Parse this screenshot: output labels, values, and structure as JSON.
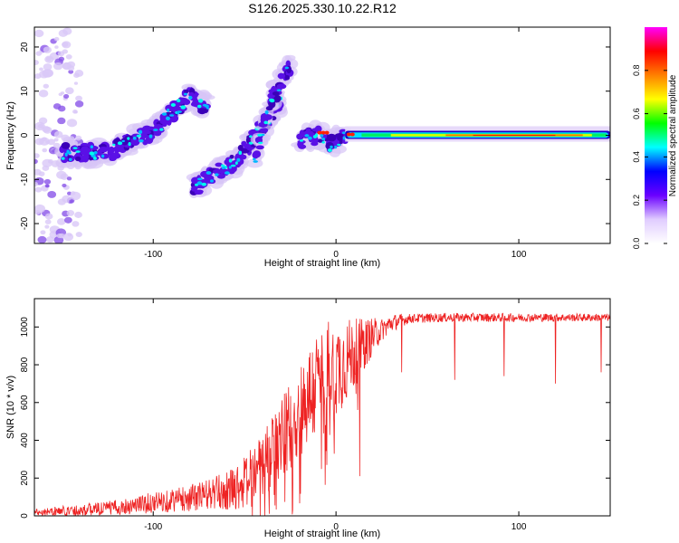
{
  "figure_title": "S126.2025.330.10.22.R12",
  "colors": {
    "axis": "#000000",
    "snr_line": "#ee2222",
    "spectral_core": "#3300aa",
    "spectral_halo": "#c9b6f2"
  },
  "chart_data": [
    {
      "type": "heatmap",
      "title": "S126.2025.330.10.22.R12",
      "xlabel": "Height of straight line (km)",
      "ylabel": "Frequency (Hz)",
      "xlim": [
        -165,
        150
      ],
      "ylim": [
        -24.5,
        24.5
      ],
      "xticks": [
        -100,
        0,
        100
      ],
      "yticks": [
        -20,
        -10,
        0,
        10,
        20
      ],
      "colorbar": {
        "label": "Normalized spectral amplitude",
        "range": [
          0.0,
          1.0
        ],
        "ticks": [
          0.0,
          0.2,
          0.4,
          0.6,
          0.8
        ],
        "tick_labels": [
          "0.0",
          "0.2",
          "0.4",
          "0.6",
          "0.8"
        ],
        "colormap": [
          "#ffffff",
          "#e0ccff",
          "#6a00ff",
          "#0000ff",
          "#00ffff",
          "#00ff00",
          "#ffff00",
          "#ff8000",
          "#ff0000",
          "#ff00ff"
        ]
      },
      "features": [
        {
          "name": "diffuse cloud",
          "x_range": [
            -165,
            -140
          ],
          "freq_range": [
            -24,
            24
          ],
          "amplitude": 0.05
        },
        {
          "name": "rising track",
          "points": [
            [
              -150,
              -4
            ],
            [
              -125,
              -4
            ],
            [
              -100,
              1
            ],
            [
              -80,
              9
            ],
            [
              -70,
              6
            ]
          ],
          "amplitude": 0.25
        },
        {
          "name": "lower branch",
          "points": [
            [
              -78,
              -12
            ],
            [
              -55,
              -6
            ],
            [
              -40,
              2
            ],
            [
              -30,
              8
            ]
          ],
          "amplitude": 0.2
        },
        {
          "name": "upper branch",
          "points": [
            [
              -45,
              -6
            ],
            [
              -35,
              8
            ],
            [
              -25,
              16
            ]
          ],
          "amplitude": 0.15
        },
        {
          "name": "band start",
          "points": [
            [
              -20,
              -1
            ],
            [
              -10,
              0
            ],
            [
              -3,
              -2
            ],
            [
              5,
              0
            ]
          ],
          "amplitude": 0.3
        },
        {
          "name": "horizontal band",
          "points": [
            [
              5,
              0
            ],
            [
              20,
              0
            ],
            [
              60,
              0
            ],
            [
              100,
              0
            ],
            [
              150,
              0
            ]
          ],
          "amplitude": 0.85
        }
      ]
    },
    {
      "type": "line",
      "xlabel": "Height of straight line (km)",
      "ylabel": "SNR (10 * v/v)",
      "xlim": [
        -165,
        150
      ],
      "ylim": [
        0,
        1150
      ],
      "xticks": [
        -100,
        0,
        100
      ],
      "yticks": [
        0,
        200,
        400,
        600,
        800,
        1000
      ],
      "envelope": [
        [
          -165,
          20
        ],
        [
          -140,
          30
        ],
        [
          -120,
          45
        ],
        [
          -100,
          70
        ],
        [
          -80,
          95
        ],
        [
          -60,
          130
        ],
        [
          -50,
          175
        ],
        [
          -40,
          260
        ],
        [
          -30,
          400
        ],
        [
          -20,
          560
        ],
        [
          -10,
          700
        ],
        [
          0,
          780
        ],
        [
          10,
          860
        ],
        [
          20,
          950
        ],
        [
          30,
          1020
        ],
        [
          40,
          1045
        ],
        [
          60,
          1050
        ],
        [
          100,
          1050
        ],
        [
          150,
          1050
        ]
      ],
      "noise_amplitude": [
        [
          -165,
          18
        ],
        [
          -120,
          40
        ],
        [
          -80,
          70
        ],
        [
          -60,
          100
        ],
        [
          -40,
          180
        ],
        [
          -25,
          250
        ],
        [
          -5,
          300
        ],
        [
          5,
          230
        ],
        [
          15,
          140
        ],
        [
          25,
          60
        ],
        [
          40,
          25
        ],
        [
          150,
          20
        ]
      ],
      "dips": [
        {
          "x": 13,
          "y": 210
        },
        {
          "x": 36,
          "y": 760
        },
        {
          "x": 65,
          "y": 720
        },
        {
          "x": 92,
          "y": 740
        },
        {
          "x": 120,
          "y": 700
        },
        {
          "x": 145,
          "y": 760
        }
      ]
    }
  ]
}
